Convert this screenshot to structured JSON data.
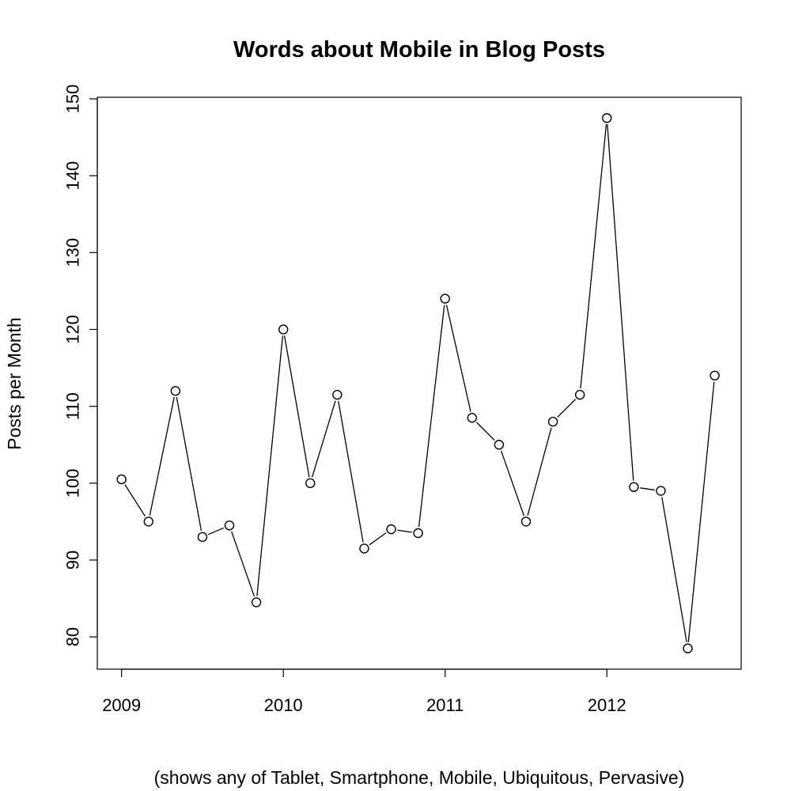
{
  "chart_data": {
    "type": "line",
    "title": "Words about Mobile in Blog Posts",
    "xlabel": "(shows any of Tablet, Smartphone, Mobile, Ubiquitous, Pervasive)",
    "ylabel": "Posts per Month",
    "x": [
      2009.0,
      2009.1667,
      2009.3333,
      2009.5,
      2009.6667,
      2009.8333,
      2010.0,
      2010.1667,
      2010.3333,
      2010.5,
      2010.6667,
      2010.8333,
      2011.0,
      2011.1667,
      2011.3333,
      2011.5,
      2011.6667,
      2011.8333,
      2012.0,
      2012.1667,
      2012.3333,
      2012.5,
      2012.6667
    ],
    "series": [
      {
        "values": [
          100.5,
          95,
          112,
          93,
          94.5,
          84.5,
          120,
          100,
          111.5,
          91.5,
          94,
          93.5,
          124,
          108.5,
          105,
          95,
          108,
          111.5,
          147.5,
          99.5,
          99,
          78.5,
          114
        ]
      }
    ],
    "xlim": [
      2008.85,
      2012.83
    ],
    "ylim": [
      75.8,
      150.2
    ],
    "xticks": [
      2009,
      2010,
      2011,
      2012
    ],
    "xtick_labels": [
      "2009",
      "2010",
      "2011",
      "2012"
    ],
    "yticks": [
      80,
      90,
      100,
      110,
      120,
      130,
      140,
      150
    ],
    "ytick_labels": [
      "80",
      "90",
      "100",
      "110",
      "120",
      "130",
      "140",
      "150"
    ],
    "markers": "open-circle",
    "grid": false,
    "legend": "none",
    "colors": {
      "line": "#000000",
      "marker_fill": "#ffffff",
      "axis": "#000000"
    }
  }
}
